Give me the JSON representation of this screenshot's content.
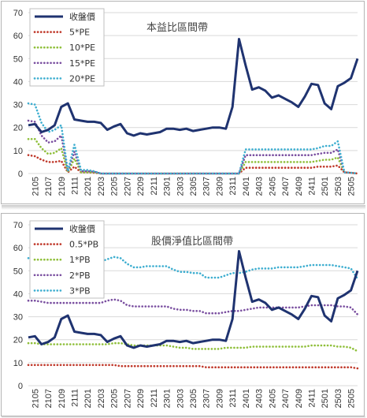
{
  "charts": {
    "pe": {
      "title": "本益比區間帶",
      "type": "line",
      "ylim": [
        0,
        70
      ],
      "yticks": [
        0,
        10,
        20,
        30,
        40,
        50,
        60,
        70
      ],
      "xticks": [
        "2105",
        "2107",
        "2109",
        "2111",
        "2201",
        "2203",
        "2205",
        "2207",
        "2209",
        "2211",
        "2301",
        "2303",
        "2305",
        "2307",
        "2309",
        "2311",
        "2401",
        "2403",
        "2405",
        "2407",
        "2409",
        "2411",
        "2501",
        "2503",
        "2505"
      ],
      "legend": [
        "收盤價",
        "5*PE",
        "10*PE",
        "15*PE",
        "20*PE"
      ]
    },
    "pb": {
      "title": "股價淨值比區間帶",
      "type": "line",
      "ylim": [
        0,
        70
      ],
      "yticks": [
        0,
        10,
        20,
        30,
        40,
        50,
        60,
        70
      ],
      "xticks": [
        "2105",
        "2107",
        "2109",
        "2111",
        "2201",
        "2203",
        "2205",
        "2207",
        "2209",
        "2211",
        "2301",
        "2303",
        "2305",
        "2307",
        "2309",
        "2311",
        "2401",
        "2403",
        "2405",
        "2407",
        "2409",
        "2411",
        "2501",
        "2503",
        "2505"
      ],
      "legend": [
        "收盤價",
        "0.5*PB",
        "1*PB",
        "2*PB",
        "3*PB"
      ]
    }
  },
  "colors": {
    "close": "#1f3370",
    "band1": "#c0392b",
    "band2": "#8fbf3a",
    "band3": "#7a4fa0",
    "band4": "#3eaed0",
    "grid": "#d9d9d9"
  },
  "chart_data": [
    {
      "type": "line",
      "title": "本益比區間帶",
      "x": [
        "2104",
        "2105",
        "2106",
        "2107",
        "2108",
        "2109",
        "2110",
        "2111",
        "2112",
        "2201",
        "2202",
        "2203",
        "2204",
        "2205",
        "2206",
        "2207",
        "2208",
        "2209",
        "2210",
        "2211",
        "2212",
        "2301",
        "2302",
        "2303",
        "2304",
        "2305",
        "2306",
        "2307",
        "2308",
        "2309",
        "2310",
        "2311",
        "2312",
        "2401",
        "2402",
        "2403",
        "2404",
        "2405",
        "2406",
        "2407",
        "2408",
        "2409",
        "2410",
        "2411",
        "2412",
        "2501",
        "2502",
        "2503",
        "2504",
        "2505",
        "2506"
      ],
      "ylim": [
        0,
        70
      ],
      "series": [
        {
          "name": "收盤價",
          "values": [
            21,
            21.5,
            18,
            19,
            21,
            29,
            30.5,
            23.5,
            23,
            22.5,
            22.5,
            22,
            19,
            20.5,
            21.5,
            17.5,
            16.5,
            17.5,
            17,
            17.5,
            18,
            19.5,
            19.5,
            19,
            19.5,
            18.5,
            19,
            19.5,
            20,
            20,
            19.5,
            29,
            58.5,
            47,
            36.5,
            37.5,
            36,
            33,
            34,
            32.5,
            31,
            29,
            33.5,
            39,
            38.5,
            30.5,
            28,
            38,
            39.5,
            41.5,
            50
          ]
        },
        {
          "name": "5*PE",
          "values": [
            8,
            7.5,
            6,
            5,
            5,
            5.5,
            0.5,
            3,
            0.5,
            0.5,
            0.3,
            0,
            0,
            0,
            0,
            0,
            0,
            0,
            0,
            0,
            0,
            0,
            0,
            0,
            0,
            0,
            0,
            0,
            0,
            0,
            0,
            0,
            0,
            2.5,
            2.5,
            2.5,
            2.5,
            2.5,
            2.5,
            2.5,
            2.5,
            2.5,
            2.5,
            2.5,
            3,
            3,
            3,
            3.5,
            0.5,
            0.3,
            0
          ]
        },
        {
          "name": "10*PE",
          "values": [
            15,
            15,
            11,
            8.5,
            9,
            11,
            0.5,
            6.5,
            0.5,
            0.5,
            0.5,
            0,
            0,
            0,
            0,
            0,
            0,
            0,
            0,
            0,
            0,
            0,
            0,
            0,
            0,
            0,
            0,
            0,
            0,
            0,
            0,
            0,
            0,
            5,
            5,
            5,
            5,
            5,
            5,
            5,
            5,
            5,
            5,
            5,
            5.5,
            6,
            6,
            7,
            0.5,
            0.3,
            0
          ]
        },
        {
          "name": "15*PE",
          "values": [
            23,
            22.5,
            16.5,
            13.5,
            14,
            16.5,
            1,
            9.5,
            1,
            1,
            0.8,
            0,
            0,
            0,
            0,
            0,
            0,
            0,
            0,
            0,
            0,
            0,
            0,
            0,
            0,
            0,
            0,
            0,
            0,
            0,
            0,
            0,
            0,
            8,
            8,
            8,
            8,
            8,
            8,
            8,
            8,
            8,
            8,
            8,
            8.5,
            9,
            9,
            10.5,
            0.5,
            0.3,
            0
          ]
        },
        {
          "name": "20*PE",
          "values": [
            30.5,
            30,
            22,
            18,
            19,
            21,
            1,
            12.5,
            1.5,
            1.5,
            1,
            0,
            0,
            0,
            0,
            0,
            0,
            0,
            0,
            0,
            0,
            0,
            0,
            0,
            0,
            0,
            0,
            0,
            0,
            0,
            0,
            0,
            0,
            10.5,
            10.5,
            10.5,
            10.5,
            10.5,
            10.5,
            10.5,
            10.5,
            10.5,
            10.5,
            10.5,
            11,
            12,
            12,
            14,
            0.5,
            0.3,
            0
          ]
        }
      ]
    },
    {
      "type": "line",
      "title": "股價淨值比區間帶",
      "x": [
        "2104",
        "2105",
        "2106",
        "2107",
        "2108",
        "2109",
        "2110",
        "2111",
        "2112",
        "2201",
        "2202",
        "2203",
        "2204",
        "2205",
        "2206",
        "2207",
        "2208",
        "2209",
        "2210",
        "2211",
        "2212",
        "2301",
        "2302",
        "2303",
        "2304",
        "2305",
        "2306",
        "2307",
        "2308",
        "2309",
        "2310",
        "2311",
        "2312",
        "2401",
        "2402",
        "2403",
        "2404",
        "2405",
        "2406",
        "2407",
        "2408",
        "2409",
        "2410",
        "2411",
        "2412",
        "2501",
        "2502",
        "2503",
        "2504",
        "2505",
        "2506"
      ],
      "ylim": [
        0,
        70
      ],
      "series": [
        {
          "name": "收盤價",
          "values": [
            21,
            21.5,
            18,
            19,
            21,
            29,
            30.5,
            23.5,
            23,
            22.5,
            22.5,
            22,
            19,
            20.5,
            21.5,
            17.5,
            16.5,
            17.5,
            17,
            17.5,
            18,
            19.5,
            19.5,
            19,
            19.5,
            18.5,
            19,
            19.5,
            20,
            20,
            19.5,
            29,
            58.5,
            47,
            36.5,
            37.5,
            36,
            33,
            34,
            32.5,
            31,
            29,
            33.5,
            39,
            38.5,
            30.5,
            28,
            38,
            39.5,
            41.5,
            50
          ]
        },
        {
          "name": "0.5*PB",
          "values": [
            9,
            9,
            9,
            9,
            9,
            9,
            9,
            9,
            9,
            9,
            9,
            9,
            9,
            9,
            8.5,
            8.5,
            8.5,
            8.5,
            8.5,
            8.5,
            8.5,
            8.5,
            8.5,
            8.5,
            8.5,
            8.5,
            8.5,
            8,
            8,
            8,
            8,
            8,
            8,
            8,
            8,
            8,
            8,
            8,
            8,
            8,
            8,
            8,
            8,
            8,
            8,
            8,
            8,
            8,
            8,
            8,
            7.5
          ]
        },
        {
          "name": "1*PB",
          "values": [
            18.5,
            18.5,
            18,
            18,
            18,
            18,
            18,
            18,
            18,
            18,
            18,
            18,
            18,
            18.5,
            18.5,
            18,
            17.5,
            17.5,
            17.5,
            17.5,
            17.5,
            17.5,
            17,
            16.5,
            16.5,
            16,
            16,
            16,
            16,
            16,
            16.5,
            16.5,
            16.5,
            16.5,
            17,
            17,
            17,
            17,
            17,
            17,
            17,
            17,
            17,
            17.5,
            17.5,
            17.5,
            17.5,
            17,
            17,
            16.5,
            15
          ]
        },
        {
          "name": "2*PB",
          "values": [
            37,
            37,
            36.5,
            36,
            36,
            36,
            36,
            36,
            36,
            36,
            36,
            36,
            37,
            37.5,
            37,
            35,
            34.5,
            34.5,
            34.5,
            34.5,
            34.5,
            34.5,
            33.5,
            33,
            33,
            32.5,
            32.5,
            31.5,
            31.5,
            31.5,
            32,
            32.5,
            32.5,
            33,
            33.5,
            34,
            34,
            34,
            34,
            34,
            34,
            34,
            34.5,
            35,
            35,
            35,
            35,
            34.5,
            34.5,
            34,
            31
          ]
        },
        {
          "name": "3*PB",
          "values": [
            55.5,
            55.5,
            54.5,
            54,
            54,
            54,
            54,
            54,
            54,
            54,
            54,
            54,
            55,
            56,
            55.5,
            53,
            51.5,
            51.5,
            52,
            52,
            52,
            52,
            50.5,
            49.5,
            49.5,
            49,
            49,
            47,
            47,
            47,
            48,
            49,
            49,
            49.5,
            50.5,
            51,
            51,
            51,
            51.5,
            51.5,
            51.5,
            51.5,
            52,
            52.5,
            52.5,
            52.5,
            52.5,
            52,
            51.5,
            51,
            46.5
          ]
        }
      ]
    }
  ]
}
